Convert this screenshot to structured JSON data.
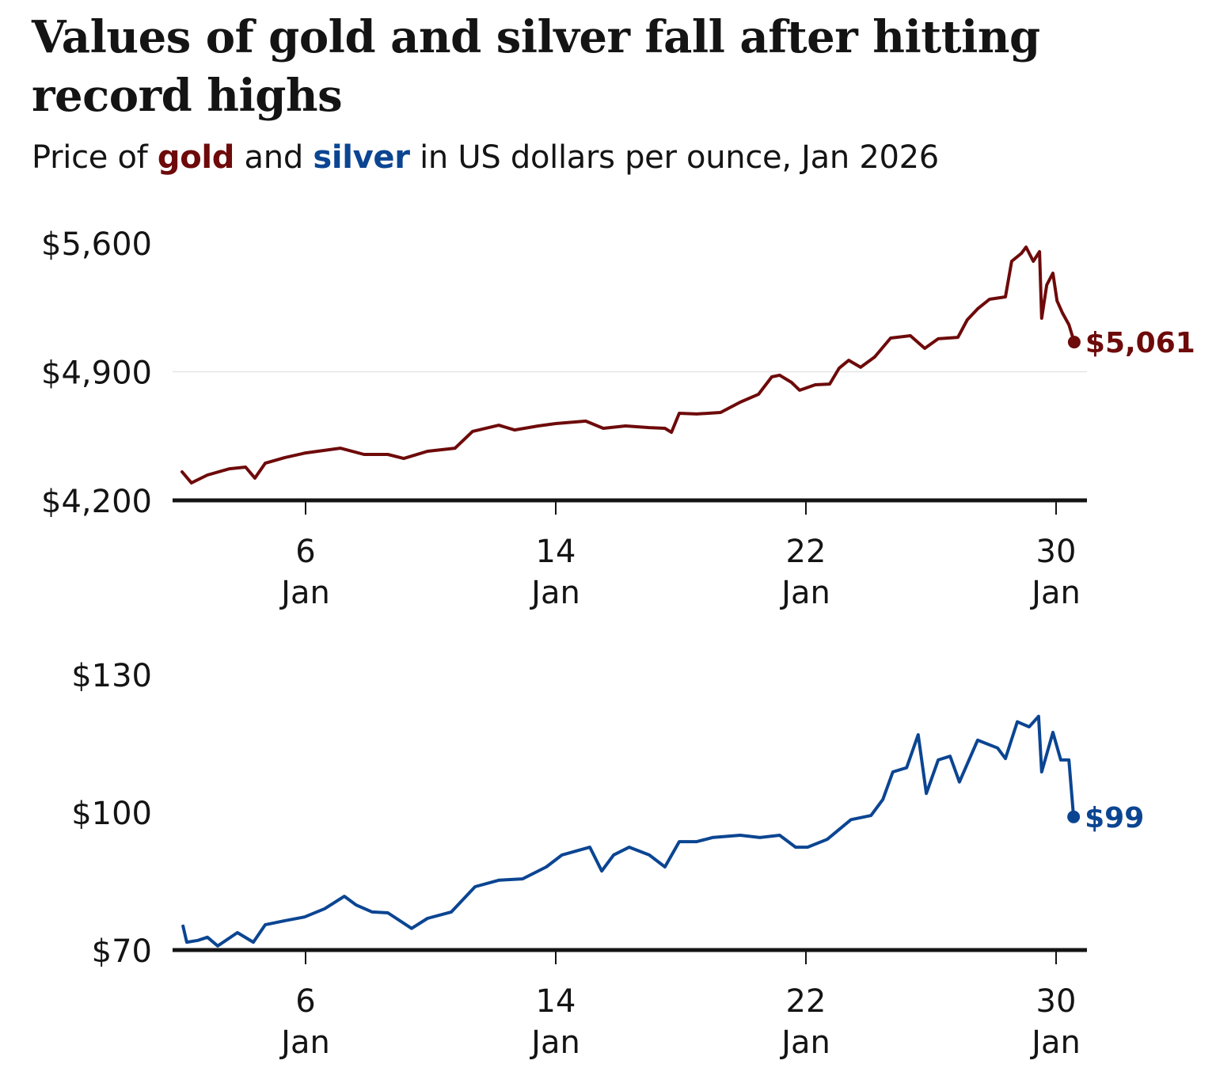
{
  "title": "Values of gold and silver fall after hitting record highs",
  "subtitle": {
    "prefix": "Price of ",
    "gold_word": "gold",
    "middle": " and ",
    "silver_word": "silver",
    "suffix": " in US dollars per ounce, Jan 2026"
  },
  "colors": {
    "gold": "#6e0a0a",
    "silver": "#0b4592",
    "axis": "#141414",
    "grid": "#e6e6e6"
  },
  "chart_data": [
    {
      "type": "line",
      "title": "Gold price",
      "series_name": "gold",
      "xlabel": "",
      "ylabel": "US dollars per ounce",
      "x_unit": "day of January 2026",
      "xlim": [
        1.6,
        31.0
      ],
      "ylim": [
        4200,
        5600
      ],
      "yticks": [
        4200,
        4900,
        5600
      ],
      "ytick_labels": [
        "$4,200",
        "$4,900",
        "$5,600"
      ],
      "xticks": [
        6,
        14,
        22,
        30
      ],
      "xtick_labels": [
        [
          "6",
          "Jan"
        ],
        [
          "14",
          "Jan"
        ],
        [
          "22",
          "Jan"
        ],
        [
          "30",
          "Jan"
        ]
      ],
      "grid": "horizontal at $4,900",
      "end_label": "$5,061",
      "x": [
        2.05,
        2.35,
        2.86,
        3.57,
        4.08,
        4.38,
        4.71,
        5.34,
        6.0,
        7.11,
        7.87,
        8.63,
        9.14,
        9.9,
        10.78,
        11.34,
        12.18,
        12.68,
        13.44,
        14.0,
        14.96,
        15.52,
        16.23,
        16.99,
        17.49,
        17.7,
        17.95,
        18.51,
        19.27,
        19.9,
        20.48,
        20.91,
        21.16,
        21.54,
        21.8,
        22.3,
        22.76,
        23.06,
        23.37,
        23.75,
        24.2,
        24.71,
        25.34,
        25.8,
        26.23,
        26.86,
        27.16,
        27.49,
        27.87,
        28.38,
        28.58,
        28.89,
        29.04,
        29.27,
        29.47,
        29.54,
        29.7,
        29.9,
        30.03,
        30.2,
        30.41,
        30.58
      ],
      "values": [
        4355,
        4295,
        4338,
        4372,
        4381,
        4321,
        4402,
        4433,
        4458,
        4484,
        4450,
        4450,
        4428,
        4467,
        4484,
        4575,
        4609,
        4583,
        4605,
        4618,
        4631,
        4592,
        4605,
        4596,
        4592,
        4570,
        4674,
        4670,
        4678,
        4734,
        4777,
        4872,
        4881,
        4842,
        4799,
        4829,
        4833,
        4919,
        4962,
        4924,
        4980,
        5083,
        5096,
        5027,
        5079,
        5087,
        5182,
        5242,
        5294,
        5307,
        5501,
        5544,
        5578,
        5501,
        5553,
        5191,
        5372,
        5436,
        5286,
        5221,
        5156,
        5061
      ]
    },
    {
      "type": "line",
      "title": "Silver price",
      "series_name": "silver",
      "xlabel": "",
      "ylabel": "US dollars per ounce",
      "x_unit": "day of January 2026",
      "xlim": [
        1.6,
        31.0
      ],
      "ylim": [
        70,
        130
      ],
      "yticks": [
        70,
        100,
        130
      ],
      "ytick_labels": [
        "$70",
        "$100",
        "$130"
      ],
      "xticks": [
        6,
        14,
        22,
        30
      ],
      "xtick_labels": [
        [
          "6",
          "Jan"
        ],
        [
          "14",
          "Jan"
        ],
        [
          "22",
          "Jan"
        ],
        [
          "30",
          "Jan"
        ]
      ],
      "grid": "none",
      "end_label": "$99",
      "x": [
        2.08,
        2.2,
        2.56,
        2.86,
        3.19,
        3.82,
        4.33,
        4.71,
        5.34,
        5.97,
        6.61,
        7.24,
        7.62,
        8.13,
        8.63,
        9.39,
        9.9,
        10.66,
        11.42,
        12.18,
        12.94,
        13.7,
        14.2,
        15.09,
        15.47,
        15.85,
        16.35,
        16.99,
        17.49,
        17.95,
        18.51,
        19.01,
        19.9,
        20.53,
        21.16,
        21.67,
        22.05,
        22.68,
        23.44,
        24.08,
        24.46,
        24.78,
        25.22,
        25.59,
        25.85,
        26.23,
        26.61,
        26.91,
        27.49,
        28.13,
        28.38,
        28.76,
        29.14,
        29.44,
        29.54,
        29.9,
        30.15,
        30.41,
        30.56
      ],
      "values": [
        75.2,
        71.7,
        72.1,
        72.8,
        70.9,
        73.8,
        71.7,
        75.5,
        76.4,
        77.2,
        79.0,
        81.7,
        79.8,
        78.3,
        78.1,
        74.7,
        76.9,
        78.3,
        83.8,
        85.2,
        85.5,
        88.1,
        90.7,
        92.4,
        87.2,
        90.7,
        92.4,
        90.7,
        88.1,
        93.6,
        93.6,
        94.5,
        95.0,
        94.5,
        95.0,
        92.4,
        92.4,
        94.1,
        98.4,
        99.3,
        102.8,
        108.8,
        109.7,
        116.9,
        104.1,
        111.4,
        112.2,
        106.6,
        115.7,
        114.0,
        111.7,
        119.7,
        118.6,
        120.9,
        108.8,
        117.4,
        111.4,
        111.4,
        99.0
      ]
    }
  ]
}
